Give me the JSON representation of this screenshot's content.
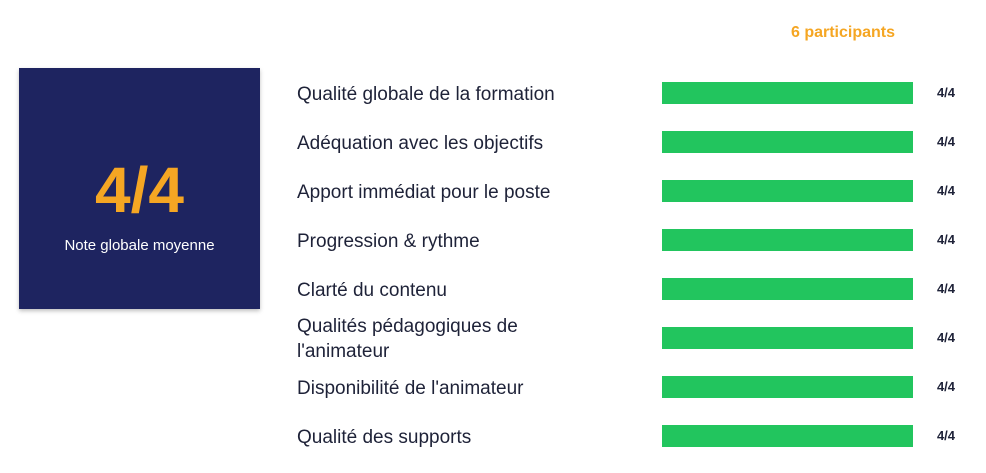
{
  "participants_label": "6 participants",
  "summary": {
    "score": "4/4",
    "label": "Note globale moyenne"
  },
  "colors": {
    "bar": "#22C55E",
    "accent": "#F5A623",
    "card": "#1E2460",
    "text": "#1E2238"
  },
  "chart_data": {
    "type": "bar",
    "orientation": "horizontal",
    "title": "",
    "xlabel": "",
    "ylabel": "",
    "xlim": [
      0,
      4
    ],
    "grid": false,
    "categories": [
      "Qualité globale de la formation",
      "Adéquation avec les objectifs",
      "Apport immédiat pour le poste",
      "Progression & rythme",
      "Clarté du contenu",
      "Qualités pédagogiques de l'animateur",
      "Disponibilité de l'animateur",
      "Qualité des supports"
    ],
    "values": [
      4,
      4,
      4,
      4,
      4,
      4,
      4,
      4
    ],
    "value_labels": [
      "4/4",
      "4/4",
      "4/4",
      "4/4",
      "4/4",
      "4/4",
      "4/4",
      "4/4"
    ],
    "max": 4
  }
}
